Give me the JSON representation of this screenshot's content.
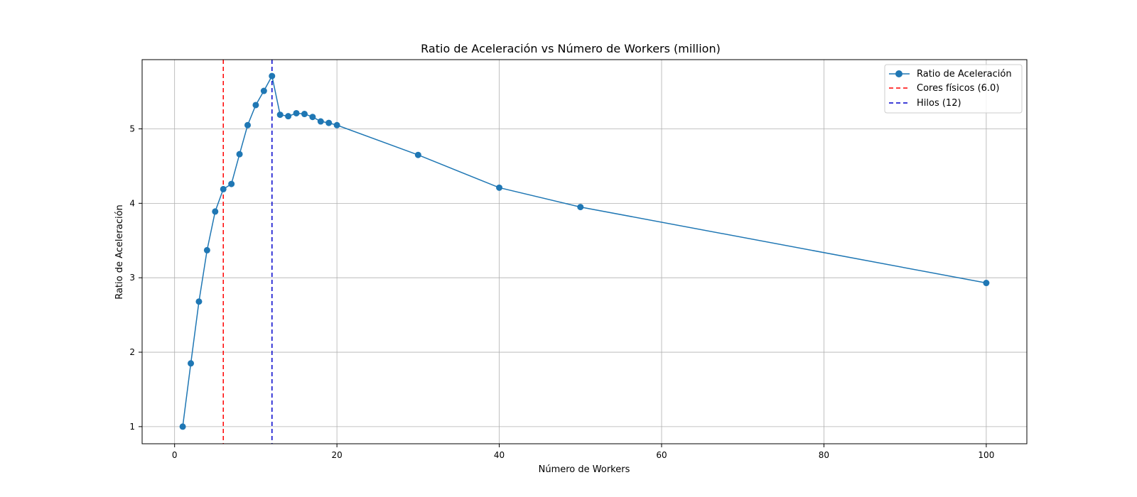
{
  "chart_data": {
    "type": "line",
    "title": "Ratio de Aceleración vs Número de Workers (million)",
    "xlabel": "Número de Workers",
    "ylabel": "Ratio de Aceleración",
    "xlim": [
      -4.0,
      105.0
    ],
    "ylim": [
      0.77,
      5.93
    ],
    "x_ticks": [
      0,
      20,
      40,
      60,
      80,
      100
    ],
    "y_ticks": [
      1,
      2,
      3,
      4,
      5
    ],
    "grid": true,
    "legend_position": "top-right",
    "series": [
      {
        "name": "Ratio de Aceleración",
        "color": "#1f77b4",
        "x": [
          1,
          2,
          3,
          4,
          5,
          6,
          7,
          8,
          9,
          10,
          11,
          12,
          13,
          14,
          15,
          16,
          17,
          18,
          19,
          20,
          30,
          40,
          50,
          100
        ],
        "y": [
          1.0,
          1.85,
          2.68,
          3.37,
          3.89,
          4.19,
          4.26,
          4.66,
          5.05,
          5.32,
          5.51,
          5.71,
          5.19,
          5.17,
          5.21,
          5.2,
          5.16,
          5.1,
          5.08,
          5.05,
          4.65,
          4.21,
          3.95,
          2.93
        ]
      }
    ],
    "reference_lines": [
      {
        "name": "Cores físicos (6.0)",
        "x": 6,
        "color": "#ff0000"
      },
      {
        "name": "Hilos (12)",
        "x": 12,
        "color": "#0000cc"
      }
    ]
  }
}
